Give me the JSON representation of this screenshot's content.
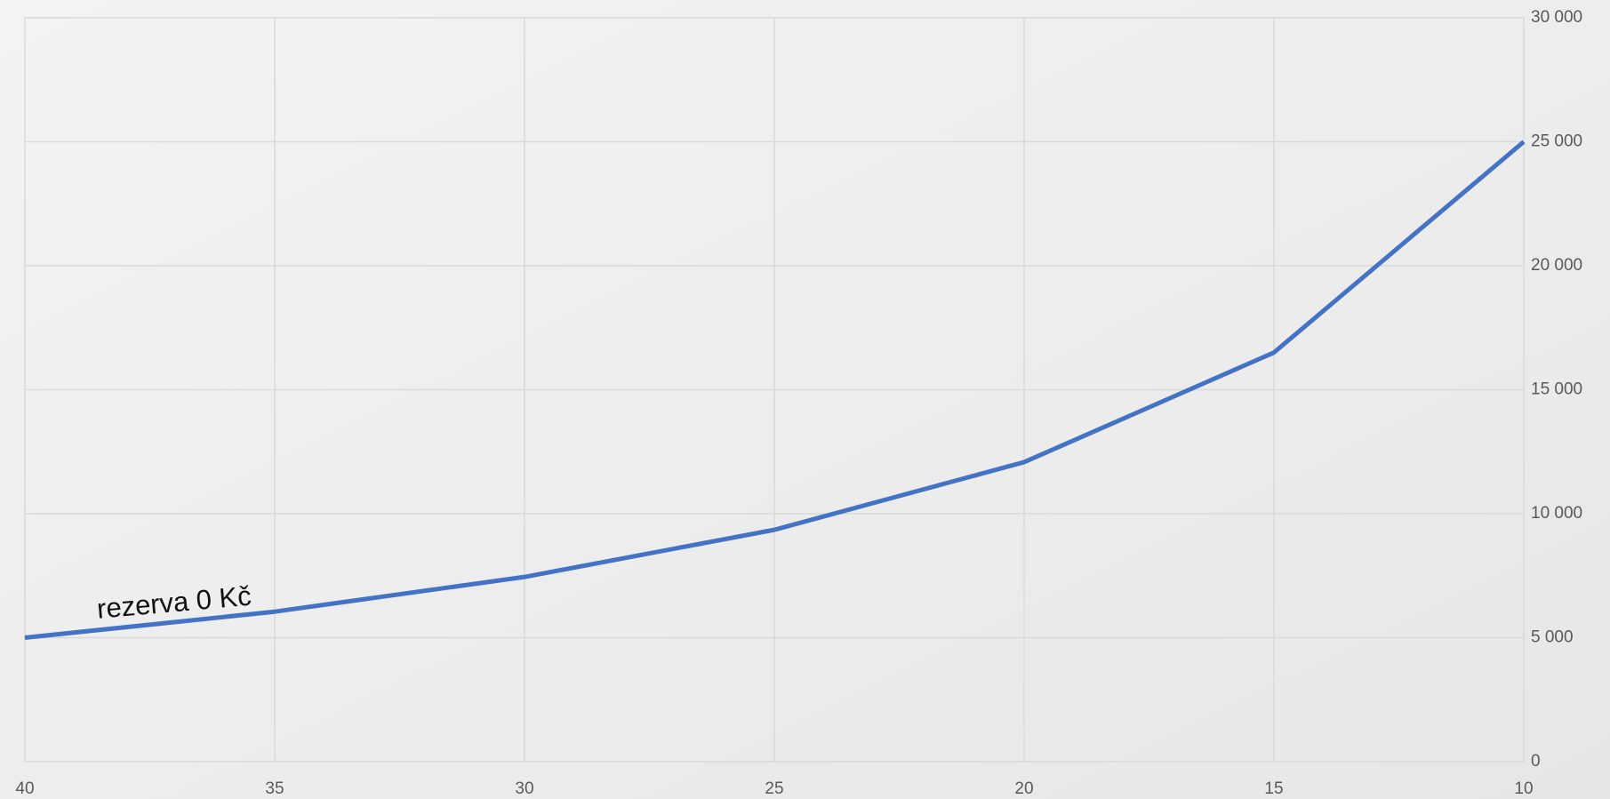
{
  "chart_data": {
    "type": "line",
    "annotation": "rezerva 0 Kč",
    "x": [
      40,
      35,
      30,
      25,
      20,
      15,
      10
    ],
    "series": [
      {
        "color": "#4472c4",
        "values": [
          5000,
          6050,
          7450,
          9350,
          12080,
          16500,
          25000
        ]
      }
    ],
    "xlim": [
      40,
      10
    ],
    "xticks": [
      40,
      35,
      30,
      25,
      20,
      15,
      10
    ],
    "ylim": [
      0,
      30000
    ],
    "yticks": [
      0,
      {
        "value": 5000,
        "label": "5 000"
      },
      {
        "value": 10000,
        "label": "10 000"
      },
      {
        "value": 15000,
        "label": "15 000"
      },
      {
        "value": 20000,
        "label": "20 000"
      },
      {
        "value": 25000,
        "label": "25 000"
      },
      {
        "value": 30000,
        "label": "30 000"
      }
    ],
    "grid": true
  }
}
